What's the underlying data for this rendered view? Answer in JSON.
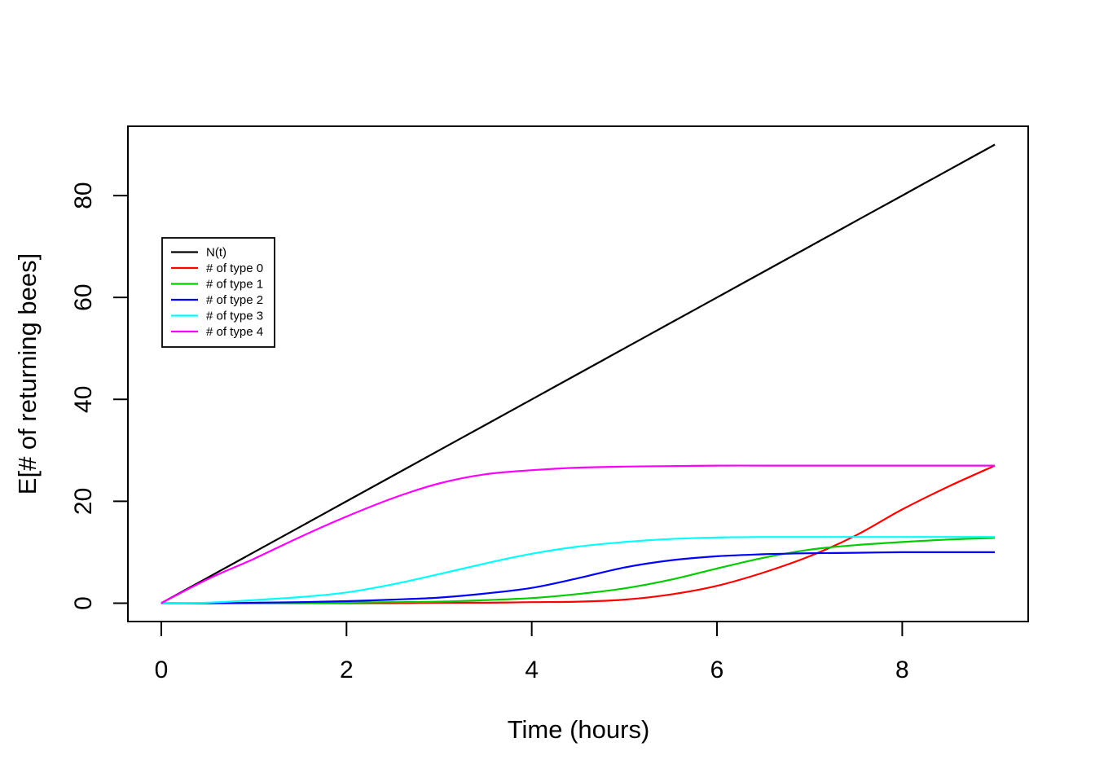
{
  "page": {
    "background": "#FFFFFF"
  },
  "chart_data": {
    "type": "line",
    "title": "",
    "xlabel": "Time (hours)",
    "ylabel": "E[# of returning bees]",
    "xlim": [
      -0.36,
      9.36
    ],
    "ylim": [
      -3.6,
      93.6
    ],
    "x_ticks": [
      0,
      2,
      4,
      6,
      8
    ],
    "y_ticks": [
      0,
      20,
      40,
      60,
      80
    ],
    "grid": false,
    "legend_position": "upper-left-inside",
    "x": [
      0,
      0.5,
      1,
      1.5,
      2,
      2.5,
      3,
      3.5,
      4,
      4.5,
      5,
      5.5,
      6,
      6.5,
      7,
      7.5,
      8,
      8.5,
      9
    ],
    "series": [
      {
        "name": "N(t)",
        "color": "#000000",
        "values": [
          0,
          5,
          10,
          15,
          20,
          25,
          30,
          35,
          40,
          45,
          50,
          55,
          60,
          65,
          70,
          75,
          80,
          85,
          90
        ]
      },
      {
        "name": "# of type 0",
        "color": "#FF0000",
        "values": [
          0,
          0,
          0,
          0,
          0,
          0,
          0.1,
          0.1,
          0.2,
          0.3,
          0.7,
          1.7,
          3.4,
          6,
          9.2,
          13.3,
          18.4,
          22.9,
          27
        ]
      },
      {
        "name": "# of type 1",
        "color": "#00CC00",
        "values": [
          0,
          0,
          0,
          0,
          0.1,
          0.2,
          0.3,
          0.6,
          1,
          1.8,
          2.9,
          4.6,
          6.8,
          8.9,
          10.5,
          11.4,
          12,
          12.5,
          12.8
        ]
      },
      {
        "name": "# of type 2",
        "color": "#0000FF",
        "values": [
          0,
          0,
          0.1,
          0.2,
          0.4,
          0.7,
          1.1,
          1.9,
          3,
          4.9,
          7,
          8.4,
          9.2,
          9.6,
          9.8,
          9.9,
          10,
          10,
          10
        ]
      },
      {
        "name": "# of type 3",
        "color": "#00FFFF",
        "values": [
          0,
          0.1,
          0.6,
          1.2,
          2.1,
          3.7,
          5.7,
          7.8,
          9.7,
          11.1,
          12,
          12.6,
          12.9,
          13,
          13,
          13,
          13,
          13,
          13
        ]
      },
      {
        "name": "# of type 4",
        "color": "#FF00FF",
        "values": [
          0,
          4.7,
          8.7,
          13,
          17,
          20.6,
          23.5,
          25.3,
          26.1,
          26.6,
          26.8,
          26.9,
          27,
          27,
          27,
          27,
          27,
          27,
          27
        ]
      }
    ]
  }
}
